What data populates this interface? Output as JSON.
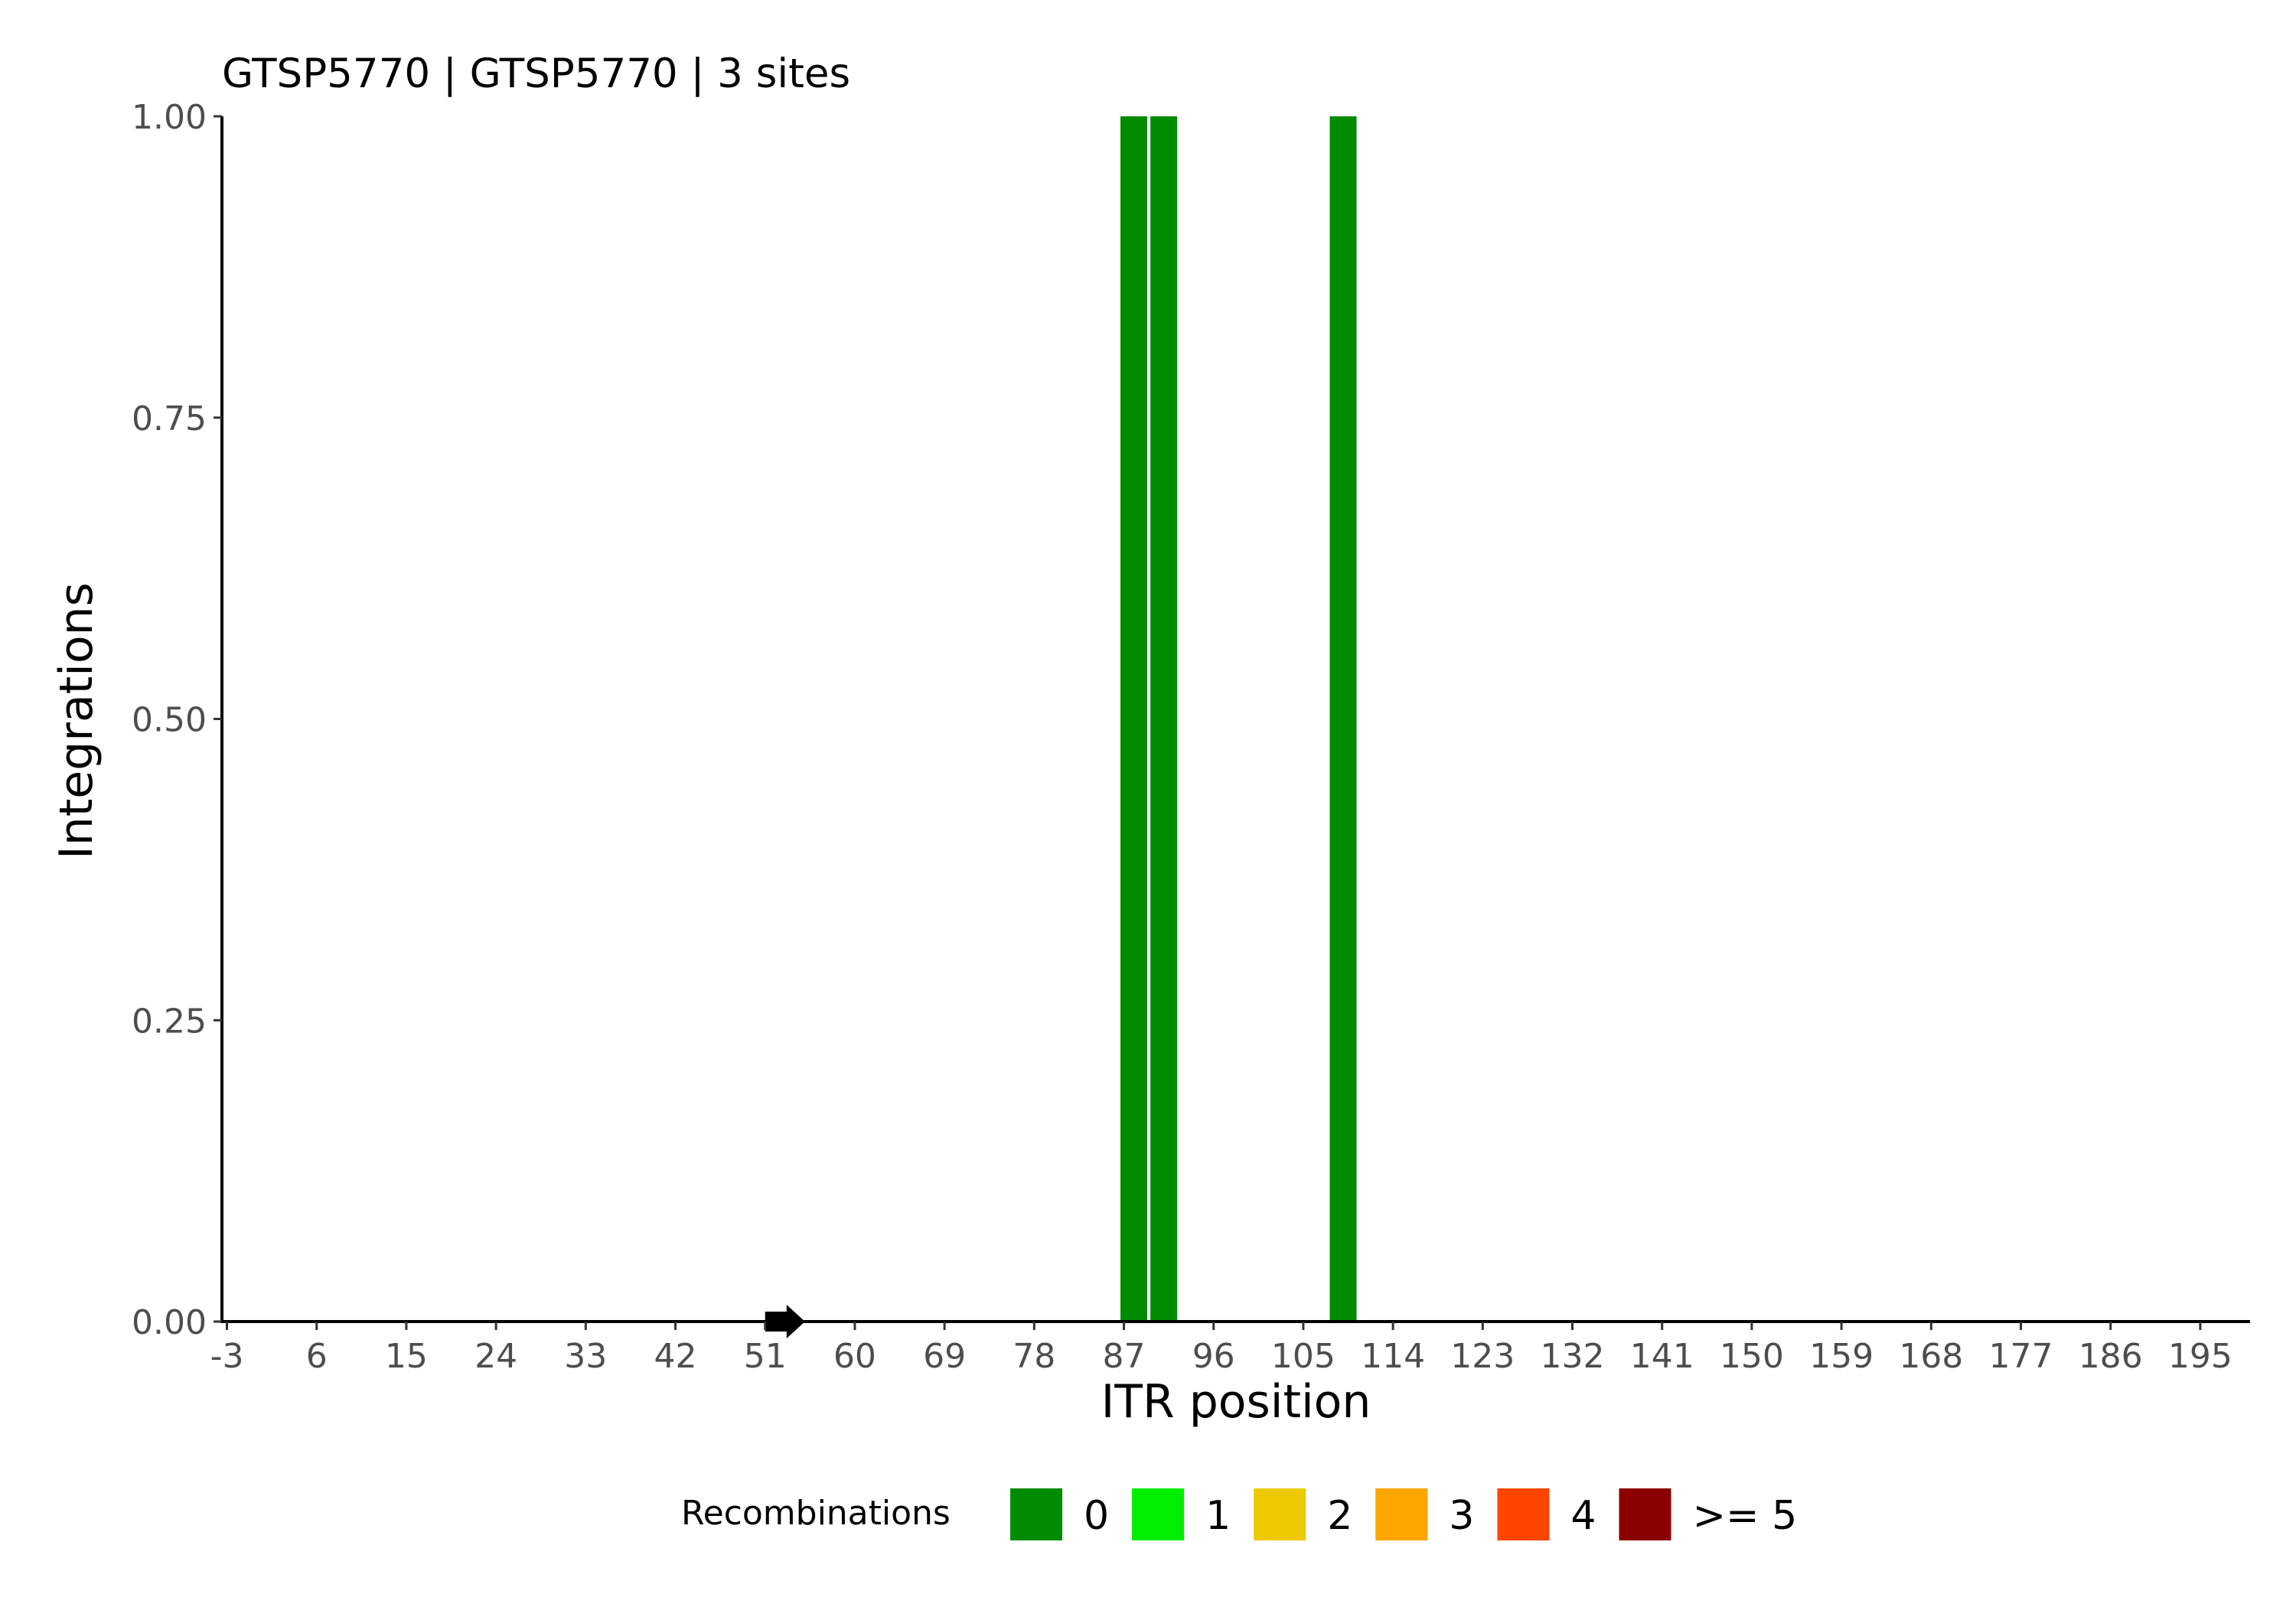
{
  "chart_data": {
    "type": "bar",
    "title": "GTSP5770 | GTSP5770 | 3 sites",
    "xlabel": "ITR position",
    "ylabel": "Integrations",
    "xlim": [
      -3.5,
      200
    ],
    "ylim": [
      0,
      1
    ],
    "x_ticks": [
      "-3",
      "6",
      "15",
      "24",
      "33",
      "42",
      "51",
      "60",
      "69",
      "78",
      "87",
      "96",
      "105",
      "114",
      "123",
      "132",
      "141",
      "150",
      "159",
      "168",
      "177",
      "186",
      "195"
    ],
    "y_ticks": [
      "0.00",
      "0.25",
      "0.50",
      "0.75",
      "1.00"
    ],
    "grid": false,
    "series": [
      {
        "name": "0",
        "x": [
          88,
          91,
          109
        ],
        "values": [
          1,
          1,
          1
        ]
      }
    ],
    "annotations": [
      {
        "type": "arrow",
        "direction": "right",
        "x": [
          51,
          55
        ]
      }
    ],
    "legend": {
      "title": "Recombinations",
      "position": "bottom",
      "items": [
        {
          "label": "0",
          "color": "#008b00"
        },
        {
          "label": "1",
          "color": "#00ee00"
        },
        {
          "label": "2",
          "color": "#eec900"
        },
        {
          "label": "3",
          "color": "#ffa500"
        },
        {
          "label": "4",
          "color": "#ff4500"
        },
        {
          "label": ">= 5",
          "color": "#8b0000"
        }
      ]
    }
  }
}
